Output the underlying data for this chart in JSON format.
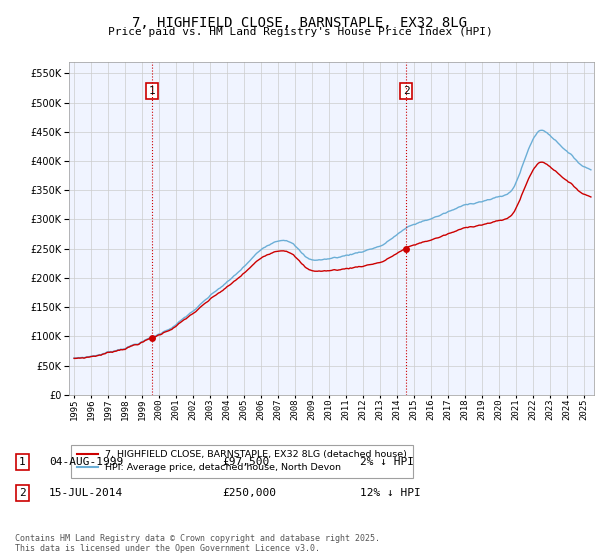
{
  "title": "7, HIGHFIELD CLOSE, BARNSTAPLE, EX32 8LG",
  "subtitle": "Price paid vs. HM Land Registry's House Price Index (HPI)",
  "sale1_date": "04-AUG-1999",
  "sale1_price": 97500,
  "sale1_label": "1",
  "sale1_year": 1999.58,
  "sale2_date": "15-JUL-2014",
  "sale2_price": 250000,
  "sale2_label": "2",
  "sale2_year": 2014.54,
  "legend_entry1": "7, HIGHFIELD CLOSE, BARNSTAPLE, EX32 8LG (detached house)",
  "legend_entry2": "HPI: Average price, detached house, North Devon",
  "table_row1": [
    "1",
    "04-AUG-1999",
    "£97,500",
    "2% ↓ HPI"
  ],
  "table_row2": [
    "2",
    "15-JUL-2014",
    "£250,000",
    "12% ↓ HPI"
  ],
  "footnote": "Contains HM Land Registry data © Crown copyright and database right 2025.\nThis data is licensed under the Open Government Licence v3.0.",
  "ylabel_ticks": [
    0,
    50000,
    100000,
    150000,
    200000,
    250000,
    300000,
    350000,
    400000,
    450000,
    500000,
    550000
  ],
  "ylim": [
    0,
    570000
  ],
  "hpi_line_color": "#6baed6",
  "hpi_fill_color": "#ddeeff",
  "price_color": "#cc0000",
  "vline_color": "#cc0000",
  "background_color": "#ffffff",
  "chart_bg_color": "#f0f4ff",
  "grid_color": "#cccccc"
}
